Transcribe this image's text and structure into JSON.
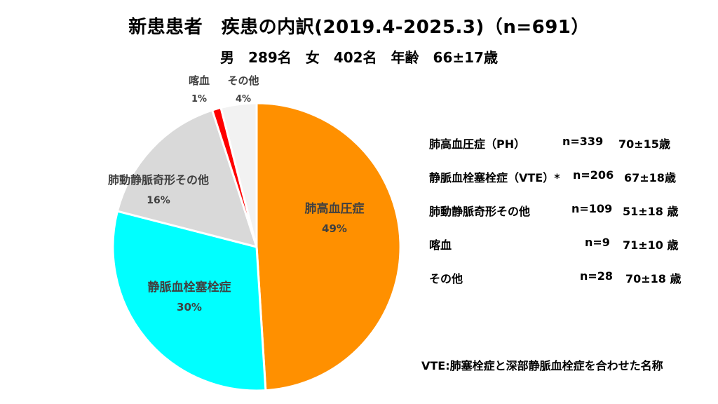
{
  "chart_data": {
    "type": "pie",
    "title": "新患患者　疾患の内訳(2019.4-2025.3)（n=691）",
    "subtitle": "男　289名　女　402名　年齢　66±17歳",
    "slices": [
      {
        "label": "肺高血圧症",
        "value": 49,
        "value_label": "49%",
        "color": "#FF9000"
      },
      {
        "label": "静脈血栓塞栓症",
        "value": 30,
        "value_label": "30%",
        "color": "#00FFFF"
      },
      {
        "label": "肺動静脈奇形その他",
        "value": 16,
        "value_label": "16%",
        "color": "#D9D9D9"
      },
      {
        "label": "喀血",
        "value": 1,
        "value_label": "1%",
        "color": "#FF0000"
      },
      {
        "label": "その他",
        "value": 4,
        "value_label": "4%",
        "color": "#F2F2F2"
      }
    ],
    "start": "12 o'clock",
    "direction": "clockwise"
  },
  "stats_table": [
    {
      "name": "肺高血圧症（PH）",
      "n": "n=339",
      "age": "70±15歳"
    },
    {
      "name": "静脈血栓塞栓症（VTE）*",
      "n": "n=206",
      "age": "67±18歳"
    },
    {
      "name": "肺動静脈奇形その他",
      "n": "n=109",
      "age": "51±18 歳"
    },
    {
      "name": "喀血",
      "n": "n=9",
      "age": "71±10 歳"
    },
    {
      "name": "その他",
      "n": "n=28",
      "age": "70±18 歳"
    }
  ],
  "footnote": "VTE:肺塞栓症と深部静脈血栓症を合わせた名称"
}
